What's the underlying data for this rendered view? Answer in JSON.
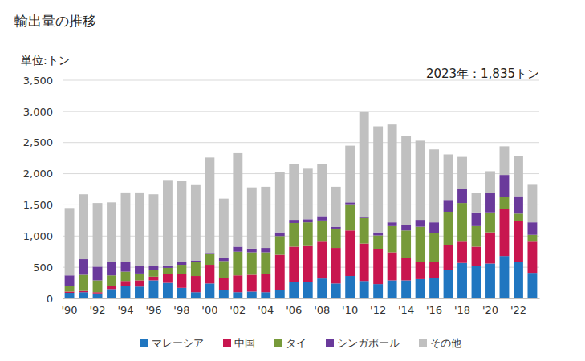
{
  "chart_data": {
    "type": "bar",
    "stacked": true,
    "grid": true,
    "legend": "bottom",
    "title": "輸出量の推移",
    "y_label": "単位:トン",
    "annotation": "2023年：1,835トン",
    "categories": [
      "'90",
      null,
      "'92",
      null,
      "'94",
      null,
      "'96",
      null,
      "'98",
      null,
      "'00",
      null,
      "'02",
      null,
      "'04",
      null,
      "'06",
      null,
      "'08",
      null,
      "'10",
      null,
      "'12",
      null,
      "'14",
      null,
      "'16",
      null,
      "'18",
      null,
      "'20",
      null,
      "'22",
      null
    ],
    "ylim": [
      0,
      3500
    ],
    "yticks": [
      0,
      500,
      {
        "value": 1000,
        "label": "1,000"
      },
      {
        "value": 1500,
        "label": "1,500"
      },
      {
        "value": 2000,
        "label": "2,000"
      },
      {
        "value": 2500,
        "label": "2,500"
      },
      {
        "value": 3000,
        "label": "3,000"
      },
      {
        "value": 3500,
        "label": "3,500"
      }
    ],
    "series": [
      {
        "name": "マレーシア",
        "color": "#2076c0",
        "values": [
          90,
          100,
          80,
          150,
          200,
          190,
          290,
          250,
          170,
          100,
          240,
          130,
          100,
          110,
          100,
          130,
          260,
          260,
          320,
          240,
          360,
          280,
          230,
          290,
          290,
          310,
          330,
          460,
          570,
          520,
          560,
          680,
          590,
          410
        ]
      },
      {
        "name": "中国",
        "color": "#c8164f",
        "values": [
          20,
          20,
          20,
          50,
          80,
          100,
          60,
          140,
          220,
          260,
          300,
          200,
          270,
          270,
          290,
          570,
          570,
          580,
          590,
          570,
          730,
          600,
          560,
          450,
          360,
          270,
          250,
          390,
          340,
          310,
          500,
          750,
          650,
          500
        ]
      },
      {
        "name": "タイ",
        "color": "#779a3a",
        "values": [
          90,
          260,
          190,
          170,
          150,
          110,
          110,
          100,
          150,
          220,
          170,
          270,
          380,
          360,
          350,
          300,
          380,
          380,
          340,
          310,
          420,
          410,
          220,
          420,
          440,
          570,
          470,
          540,
          620,
          330,
          320,
          200,
          120,
          110
        ]
      },
      {
        "name": "シンガポール",
        "color": "#6a3a9b",
        "values": [
          170,
          250,
          220,
          220,
          150,
          120,
          60,
          40,
          40,
          30,
          20,
          50,
          80,
          60,
          70,
          60,
          50,
          50,
          70,
          30,
          30,
          20,
          50,
          60,
          90,
          110,
          170,
          190,
          230,
          220,
          310,
          350,
          280,
          200
        ]
      },
      {
        "name": "その他",
        "color": "#c0c0c0",
        "values": [
          1080,
          1040,
          1020,
          950,
          1120,
          1180,
          1150,
          1370,
          1300,
          1220,
          1530,
          950,
          1500,
          980,
          980,
          970,
          900,
          810,
          830,
          640,
          910,
          1690,
          1700,
          1570,
          1420,
          1270,
          1170,
          730,
          510,
          310,
          350,
          460,
          640,
          615
        ]
      }
    ]
  }
}
